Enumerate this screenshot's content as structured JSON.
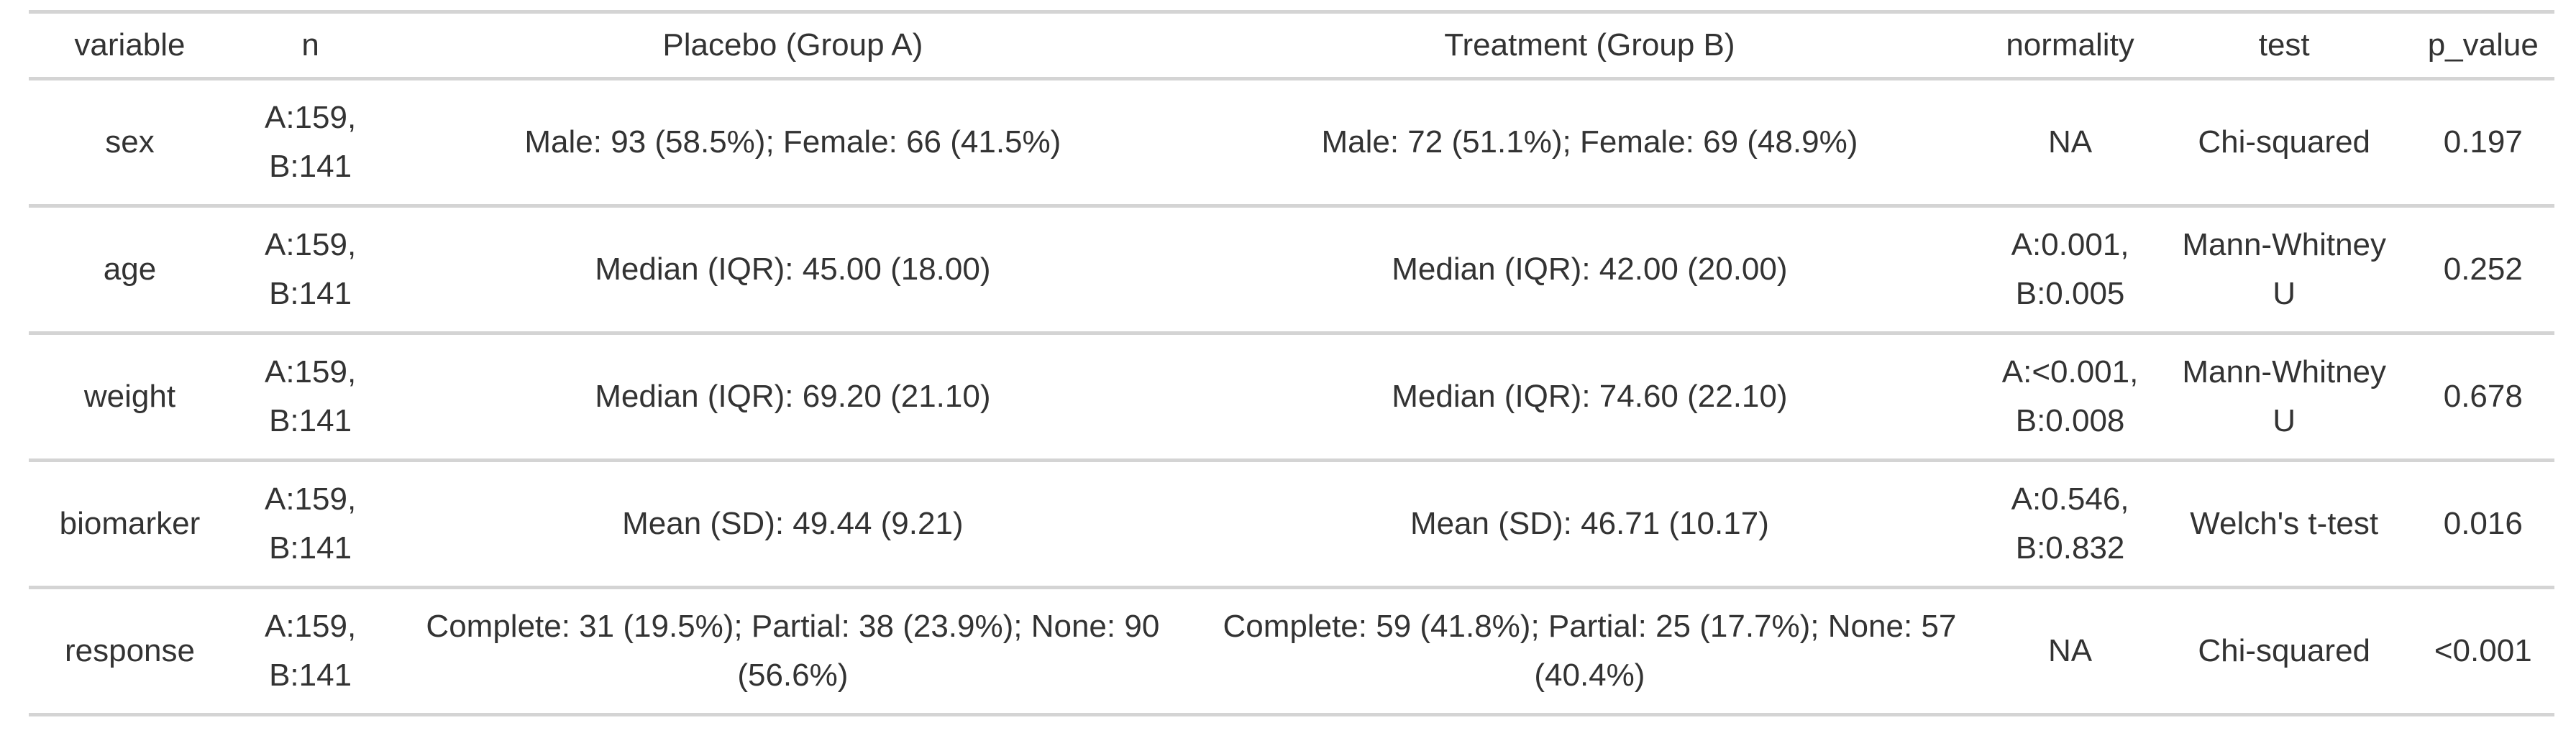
{
  "table": {
    "colors": {
      "divider": "#d4d4d4",
      "text": "#333333",
      "background": "#ffffff"
    },
    "columns": [
      {
        "key": "variable",
        "label": "variable"
      },
      {
        "key": "n",
        "label": "n"
      },
      {
        "key": "placebo",
        "label": "Placebo (Group A)"
      },
      {
        "key": "treatment",
        "label": "Treatment (Group B)"
      },
      {
        "key": "normality",
        "label": "normality"
      },
      {
        "key": "test",
        "label": "test"
      },
      {
        "key": "p_value",
        "label": "p_value"
      }
    ],
    "rows": [
      {
        "variable": "sex",
        "n": "A:159,\nB:141",
        "placebo": "Male: 93 (58.5%); Female: 66 (41.5%)",
        "treatment": "Male: 72 (51.1%); Female: 69 (48.9%)",
        "normality": "NA",
        "test": "Chi-squared",
        "p_value": "0.197"
      },
      {
        "variable": "age",
        "n": "A:159,\nB:141",
        "placebo": "Median (IQR): 45.00 (18.00)",
        "treatment": "Median (IQR): 42.00 (20.00)",
        "normality": "A:0.001,\nB:0.005",
        "test": "Mann-Whitney\nU",
        "p_value": "0.252"
      },
      {
        "variable": "weight",
        "n": "A:159,\nB:141",
        "placebo": "Median (IQR): 69.20 (21.10)",
        "treatment": "Median (IQR): 74.60 (22.10)",
        "normality": "A:<0.001,\nB:0.008",
        "test": "Mann-Whitney\nU",
        "p_value": "0.678"
      },
      {
        "variable": "biomarker",
        "n": "A:159,\nB:141",
        "placebo": "Mean (SD): 49.44 (9.21)",
        "treatment": "Mean (SD): 46.71 (10.17)",
        "normality": "A:0.546,\nB:0.832",
        "test": "Welch's t-test",
        "p_value": "0.016"
      },
      {
        "variable": "response",
        "n": "A:159,\nB:141",
        "placebo": "Complete: 31 (19.5%); Partial: 38 (23.9%); None: 90\n(56.6%)",
        "treatment": "Complete: 59 (41.8%); Partial: 25 (17.7%); None: 57\n(40.4%)",
        "normality": "NA",
        "test": "Chi-squared",
        "p_value": "<0.001"
      }
    ]
  }
}
